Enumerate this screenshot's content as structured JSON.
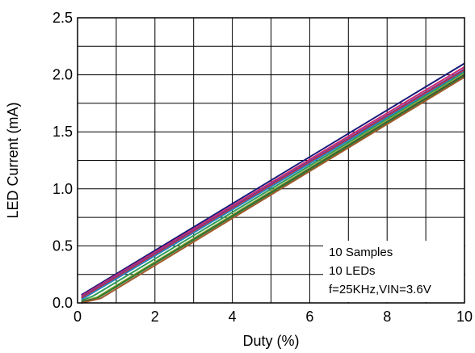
{
  "chart_data": {
    "type": "line",
    "xlabel": "Duty (%)",
    "ylabel": "LED Current (mA)",
    "xlim": [
      0,
      10
    ],
    "ylim": [
      0.0,
      2.5
    ],
    "x_ticks": [
      "0",
      "2",
      "4",
      "6",
      "8",
      "10"
    ],
    "y_ticks": [
      "0.0",
      "0.5",
      "1.0",
      "1.5",
      "2.0",
      "2.5"
    ],
    "x_tick_values": [
      0,
      2,
      4,
      6,
      8,
      10
    ],
    "y_tick_values": [
      0.0,
      0.5,
      1.0,
      1.5,
      2.0,
      2.5
    ],
    "x_grid_values": [
      0,
      1,
      2,
      3,
      4,
      5,
      6,
      7,
      8,
      9,
      10
    ],
    "y_grid_values": [
      0.0,
      0.25,
      0.5,
      0.75,
      1.0,
      1.25,
      1.5,
      1.75,
      2.0,
      2.25,
      2.5
    ],
    "grid": true,
    "annotation_lines": [
      "10 Samples",
      "10 LEDs",
      "f=25KHz,VIN=3.6V"
    ],
    "series": [
      {
        "color": "#1a1a7a",
        "points": [
          [
            0.1,
            0.07
          ],
          [
            10,
            2.1
          ]
        ]
      },
      {
        "color": "#cc2a6f",
        "points": [
          [
            0.1,
            0.06
          ],
          [
            10,
            2.07
          ]
        ]
      },
      {
        "color": "#6b3fa0",
        "points": [
          [
            0.1,
            0.05
          ],
          [
            10,
            2.05
          ]
        ]
      },
      {
        "color": "#d6262b",
        "points": [
          [
            0.1,
            0.04
          ],
          [
            10,
            2.04
          ]
        ]
      },
      {
        "color": "#2a7fc0",
        "points": [
          [
            0.1,
            0.03
          ],
          [
            10,
            2.03
          ]
        ]
      },
      {
        "color": "#2e9a5a",
        "points": [
          [
            0.1,
            0.02
          ],
          [
            0.4,
            0.06
          ],
          [
            10,
            2.02
          ]
        ]
      },
      {
        "color": "#8fb43a",
        "points": [
          [
            0.1,
            0.01
          ],
          [
            0.5,
            0.05
          ],
          [
            10,
            2.01
          ]
        ]
      },
      {
        "color": "#444444",
        "points": [
          [
            0.1,
            0.01
          ],
          [
            0.5,
            0.04
          ],
          [
            10,
            2.0
          ]
        ]
      },
      {
        "color": "#2f7a2f",
        "points": [
          [
            0.1,
            0.0
          ],
          [
            0.5,
            0.04
          ],
          [
            10,
            1.99
          ]
        ]
      },
      {
        "color": "#a05a2c",
        "points": [
          [
            0.1,
            0.0
          ],
          [
            0.6,
            0.04
          ],
          [
            10,
            1.98
          ]
        ]
      }
    ]
  }
}
